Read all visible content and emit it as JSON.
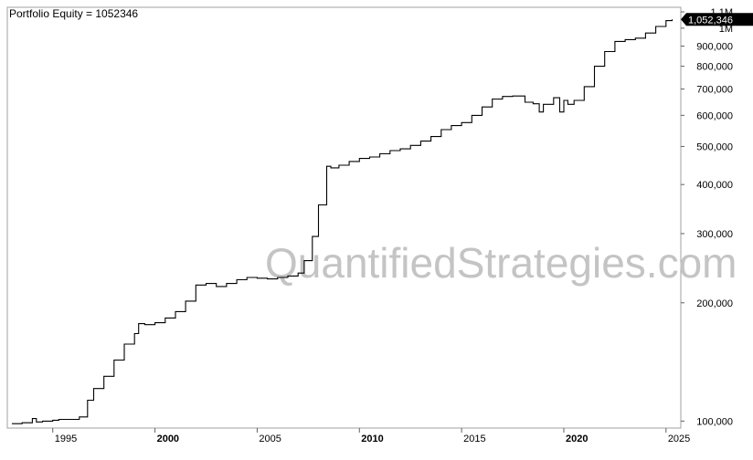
{
  "chart_data": {
    "type": "line",
    "title": "Portfolio Equity = 1052346",
    "last_value_label": "1,052,346",
    "watermark": "QuantifiedStrategies.com",
    "y_scale": "log",
    "ylim": [
      96000,
      1130000
    ],
    "xlim": [
      1993.0,
      2025.5
    ],
    "grid": false,
    "y_ticks": [
      {
        "value": 1100000,
        "label": "1.1M"
      },
      {
        "value": 1000000,
        "label": "1M"
      },
      {
        "value": 900000,
        "label": "900,000"
      },
      {
        "value": 800000,
        "label": "800,000"
      },
      {
        "value": 700000,
        "label": "700,000"
      },
      {
        "value": 600000,
        "label": "600,000"
      },
      {
        "value": 500000,
        "label": "500,000"
      },
      {
        "value": 400000,
        "label": "400,000"
      },
      {
        "value": 300000,
        "label": "300,000"
      },
      {
        "value": 200000,
        "label": "200,000"
      },
      {
        "value": 100000,
        "label": "100,000"
      }
    ],
    "x_ticks": [
      {
        "value": 1995,
        "label": "1995",
        "bold": false
      },
      {
        "value": 2000,
        "label": "2000",
        "bold": true
      },
      {
        "value": 2005,
        "label": "2005",
        "bold": false
      },
      {
        "value": 2010,
        "label": "2010",
        "bold": true
      },
      {
        "value": 2015,
        "label": "2015",
        "bold": false
      },
      {
        "value": 2020,
        "label": "2020",
        "bold": true
      },
      {
        "value": 2025,
        "label": "2025",
        "bold": false
      }
    ],
    "series": [
      {
        "x": [
          1993.0,
          1993.5,
          1994.0,
          1994.2,
          1994.5,
          1995.0,
          1995.3,
          1995.8,
          1996.3,
          1996.7,
          1997.0,
          1997.5,
          1998.0,
          1998.5,
          1999.0,
          1999.2,
          1999.5,
          2000.0,
          2000.5,
          2001.0,
          2001.5,
          2002.0,
          2002.5,
          2003.0,
          2003.5,
          2004.0,
          2004.5,
          2005.0,
          2005.5,
          2006.0,
          2006.5,
          2007.0,
          2007.3,
          2007.7,
          2008.0,
          2008.4,
          2008.6,
          2009.0,
          2009.5,
          2010.0,
          2010.5,
          2011.0,
          2011.5,
          2012.0,
          2012.5,
          2013.0,
          2013.5,
          2014.0,
          2014.5,
          2015.0,
          2015.5,
          2016.0,
          2016.5,
          2017.0,
          2017.5,
          2017.9,
          2018.1,
          2018.5,
          2018.8,
          2019.0,
          2019.5,
          2019.8,
          2020.0,
          2020.2,
          2020.5,
          2021.0,
          2021.5,
          2022.0,
          2022.5,
          2023.0,
          2023.5,
          2024.0,
          2024.5,
          2025.0,
          2025.3
        ],
        "values": [
          98500,
          99000,
          101500,
          99500,
          100000,
          100500,
          101000,
          101000,
          102500,
          113000,
          121000,
          130000,
          143000,
          157000,
          167000,
          177000,
          176000,
          178000,
          183000,
          190000,
          202000,
          222000,
          224000,
          220000,
          224000,
          229000,
          232000,
          231000,
          230000,
          232000,
          234000,
          238000,
          256000,
          295000,
          355000,
          445000,
          441000,
          448000,
          458000,
          466000,
          470000,
          479000,
          488000,
          493000,
          503000,
          516000,
          530000,
          552000,
          565000,
          575000,
          600000,
          630000,
          660000,
          670000,
          672000,
          672000,
          648000,
          642000,
          612000,
          640000,
          665000,
          612000,
          655000,
          640000,
          655000,
          710000,
          800000,
          872000,
          925000,
          935000,
          943000,
          972000,
          1010000,
          1045000,
          1052346
        ]
      }
    ]
  }
}
